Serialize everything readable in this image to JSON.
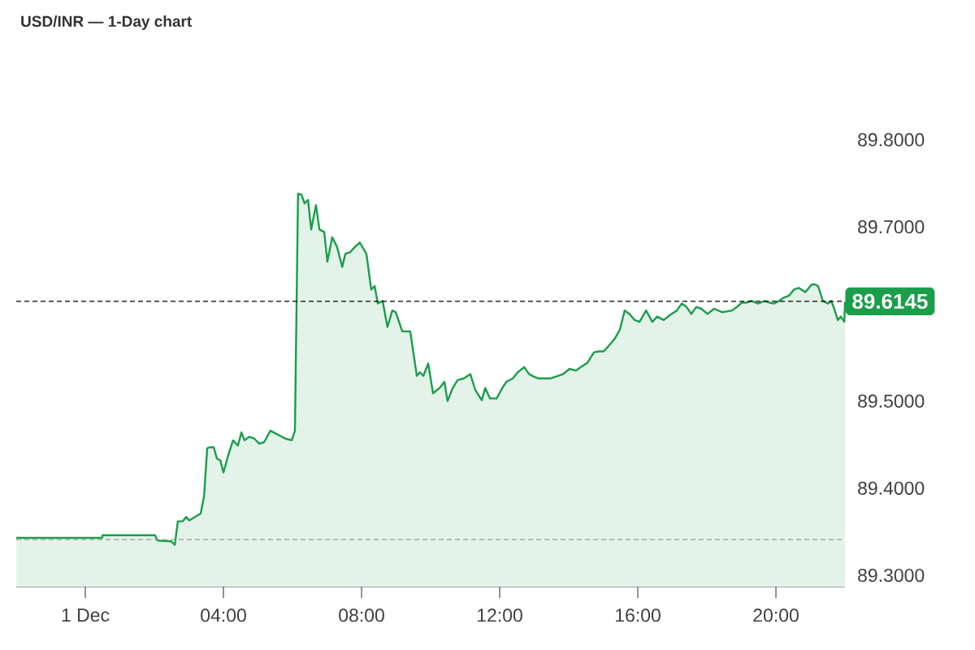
{
  "chart_data": {
    "type": "area",
    "title": "USD/INR — 1-Day chart",
    "x": [
      -2,
      0.49,
      0.5,
      2.02,
      2.09,
      2.49,
      2.59,
      2.68,
      2.82,
      2.92,
      3.01,
      3.34,
      3.44,
      3.53,
      3.62,
      3.72,
      3.81,
      3.91,
      4.0,
      4.14,
      4.28,
      4.42,
      4.52,
      4.61,
      4.75,
      4.89,
      5.04,
      5.18,
      5.36,
      5.55,
      5.79,
      5.98,
      6.07,
      6.16,
      6.26,
      6.35,
      6.45,
      6.54,
      6.68,
      6.78,
      6.92,
      7.01,
      7.15,
      7.29,
      7.44,
      7.53,
      7.67,
      7.81,
      7.95,
      8.14,
      8.28,
      8.38,
      8.47,
      8.61,
      8.75,
      8.89,
      8.99,
      9.18,
      9.41,
      9.6,
      9.69,
      9.79,
      9.93,
      10.07,
      10.26,
      10.4,
      10.49,
      10.64,
      10.78,
      10.96,
      11.15,
      11.29,
      11.48,
      11.58,
      11.72,
      11.91,
      12.09,
      12.19,
      12.38,
      12.52,
      12.71,
      12.85,
      12.99,
      13.13,
      13.46,
      13.69,
      13.84,
      14.02,
      14.21,
      14.35,
      14.54,
      14.73,
      14.87,
      15.01,
      15.15,
      15.34,
      15.48,
      15.62,
      15.76,
      15.91,
      16.05,
      16.24,
      16.42,
      16.56,
      16.75,
      16.94,
      17.13,
      17.27,
      17.41,
      17.55,
      17.69,
      17.84,
      18.02,
      18.21,
      18.45,
      18.73,
      18.87,
      19.01,
      19.15,
      19.29,
      19.48,
      19.67,
      19.81,
      19.95,
      20.09,
      20.24,
      20.38,
      20.52,
      20.66,
      20.85,
      21.04,
      21.13,
      21.22,
      21.36,
      21.51,
      21.6,
      21.69,
      21.79,
      21.88,
      21.98,
      22
    ],
    "series": [
      {
        "color": "#1a9e4a",
        "values": [
          89.343,
          89.343,
          89.346,
          89.346,
          89.34,
          89.339,
          89.335,
          89.362,
          89.362,
          89.367,
          89.363,
          89.371,
          89.391,
          89.446,
          89.447,
          89.447,
          89.434,
          89.432,
          89.418,
          89.438,
          89.455,
          89.449,
          89.464,
          89.455,
          89.459,
          89.457,
          89.451,
          89.453,
          89.466,
          89.462,
          89.457,
          89.455,
          89.466,
          89.738,
          89.737,
          89.727,
          89.731,
          89.697,
          89.725,
          89.697,
          89.694,
          89.66,
          89.688,
          89.677,
          89.654,
          89.669,
          89.671,
          89.677,
          89.682,
          89.669,
          89.628,
          89.632,
          89.612,
          89.615,
          89.585,
          89.604,
          89.602,
          89.58,
          89.58,
          89.529,
          89.533,
          89.529,
          89.543,
          89.509,
          89.515,
          89.522,
          89.5,
          89.515,
          89.524,
          89.526,
          89.531,
          89.513,
          89.501,
          89.515,
          89.503,
          89.503,
          89.516,
          89.522,
          89.526,
          89.533,
          89.539,
          89.531,
          89.528,
          89.526,
          89.526,
          89.529,
          89.531,
          89.537,
          89.535,
          89.539,
          89.544,
          89.556,
          89.557,
          89.557,
          89.563,
          89.572,
          89.582,
          89.604,
          89.6,
          89.593,
          89.591,
          89.604,
          89.591,
          89.597,
          89.593,
          89.599,
          89.604,
          89.612,
          89.608,
          89.6,
          89.608,
          89.606,
          89.6,
          89.606,
          89.602,
          89.604,
          89.608,
          89.613,
          89.613,
          89.615,
          89.612,
          89.615,
          89.613,
          89.612,
          89.615,
          89.619,
          89.621,
          89.628,
          89.63,
          89.625,
          89.634,
          89.634,
          89.632,
          89.615,
          89.612,
          89.615,
          89.606,
          89.593,
          89.597,
          89.591,
          89.614
        ]
      }
    ],
    "xlim": [
      -2,
      22
    ],
    "xticks": [
      {
        "value": 0,
        "label": "1 Dec"
      },
      {
        "value": 4,
        "label": "04:00"
      },
      {
        "value": 8,
        "label": "08:00"
      },
      {
        "value": 12,
        "label": "12:00"
      },
      {
        "value": 16,
        "label": "16:00"
      },
      {
        "value": 20,
        "label": "20:00"
      }
    ],
    "ylim": [
      89.287,
      89.8
    ],
    "yticks": [
      {
        "value": 89.3,
        "label": "89.3000"
      },
      {
        "value": 89.4,
        "label": "89.4000"
      },
      {
        "value": 89.5,
        "label": "89.5000"
      },
      {
        "value": 89.7,
        "label": "89.7000"
      },
      {
        "value": 89.8,
        "label": "89.8000"
      }
    ],
    "ref_lines": [
      {
        "axis": "y",
        "value": 89.6145,
        "label": "89.6145",
        "color": "#000000",
        "line_style": "dashed"
      },
      {
        "axis": "y",
        "value": 89.341,
        "color": "#999999",
        "line_style": "dashed"
      }
    ]
  }
}
